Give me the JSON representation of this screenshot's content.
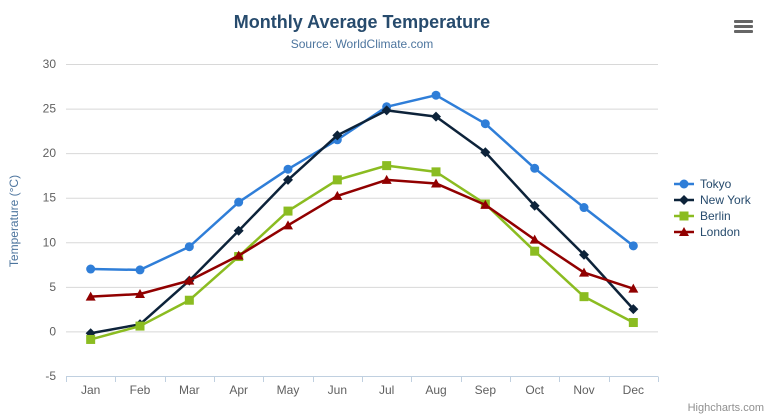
{
  "header": {
    "title": "Monthly Average Temperature",
    "subtitle": "Source: WorldClimate.com"
  },
  "credit": "Highcharts.com",
  "colors": {
    "title": "#274b6d",
    "subtitle": "#4d759e",
    "axis_title": "#4d759e",
    "axis_label": "#606060",
    "grid": "#d8d8d8",
    "axis_line": "#c0d0e0",
    "legend_text": "#274b6d",
    "credit": "#909090",
    "menu_icon": "#666666",
    "background": "#ffffff"
  },
  "chart_data": {
    "type": "line",
    "title": "Monthly Average Temperature",
    "subtitle": "Source: WorldClimate.com",
    "categories": [
      "Jan",
      "Feb",
      "Mar",
      "Apr",
      "May",
      "Jun",
      "Jul",
      "Aug",
      "Sep",
      "Oct",
      "Nov",
      "Dec"
    ],
    "series": [
      {
        "name": "Tokyo",
        "color": "#2f7ed8",
        "marker": "circle",
        "values": [
          7.0,
          6.9,
          9.5,
          14.5,
          18.2,
          21.5,
          25.2,
          26.5,
          23.3,
          18.3,
          13.9,
          9.6
        ]
      },
      {
        "name": "New York",
        "color": "#0d233a",
        "marker": "diamond",
        "values": [
          -0.2,
          0.8,
          5.7,
          11.3,
          17.0,
          22.0,
          24.8,
          24.1,
          20.1,
          14.1,
          8.6,
          2.5
        ]
      },
      {
        "name": "Berlin",
        "color": "#8bbc21",
        "marker": "square",
        "values": [
          -0.9,
          0.6,
          3.5,
          8.4,
          13.5,
          17.0,
          18.6,
          17.9,
          14.3,
          9.0,
          3.9,
          1.0
        ]
      },
      {
        "name": "London",
        "color": "#910000",
        "marker": "triangle",
        "values": [
          3.9,
          4.2,
          5.7,
          8.5,
          11.9,
          15.2,
          17.0,
          16.6,
          14.2,
          10.3,
          6.6,
          4.8
        ]
      }
    ],
    "xlabel": "",
    "ylabel": "Temperature (°C)",
    "ylim": [
      -5,
      30
    ],
    "yticks": [
      -5,
      0,
      5,
      10,
      15,
      20,
      25,
      30
    ],
    "grid": true,
    "legend_position": "right"
  }
}
